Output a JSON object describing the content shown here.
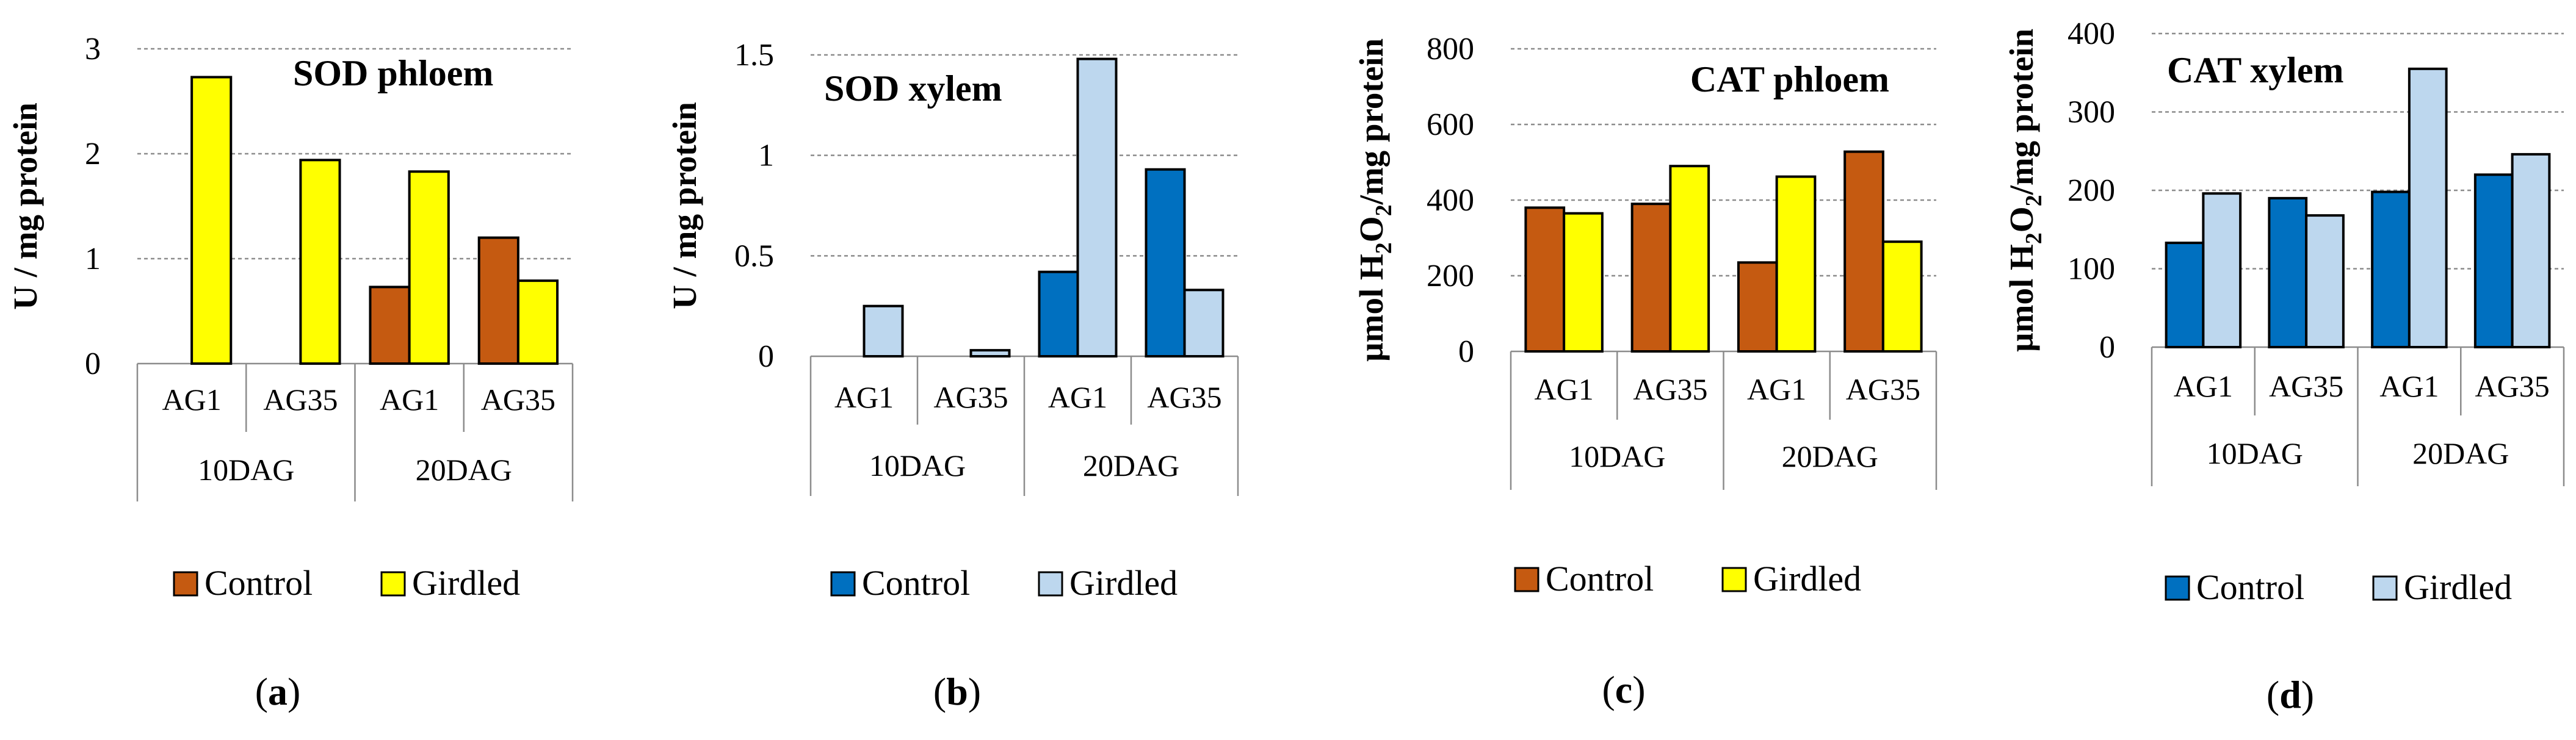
{
  "figure": {
    "panel_labels": [
      "(a)",
      "(b)",
      "(c)",
      "(d)"
    ]
  },
  "colors": {
    "control_brown": "#C55A11",
    "girdled_yellow": "#FFFF00",
    "control_blue": "#0070C0",
    "girdled_lightblue": "#BDD7EE",
    "grid": "#8C8C8C"
  },
  "chart_data": [
    {
      "type": "bar",
      "title": "SOD phloem",
      "ylabel": "U / mg protein",
      "ylim": [
        0,
        3
      ],
      "yticks": [
        "0",
        "1",
        "2",
        "3"
      ],
      "grid": true,
      "categories": [
        "AG1",
        "AG35",
        "AG1",
        "AG35"
      ],
      "groups": [
        "10DAG",
        "20DAG"
      ],
      "legend_position": "bottom",
      "series": [
        {
          "name": "Control",
          "color": "#C55A11",
          "values": [
            0,
            0,
            0.73,
            1.2
          ]
        },
        {
          "name": "Girdled",
          "color": "#FFFF00",
          "values": [
            2.73,
            1.94,
            1.83,
            0.79
          ]
        }
      ]
    },
    {
      "type": "bar",
      "title": "SOD xylem",
      "ylabel": "U / mg protein",
      "ylim": [
        0,
        1.5
      ],
      "yticks": [
        "0",
        "0.5",
        "1",
        "1.5"
      ],
      "grid": true,
      "categories": [
        "AG1",
        "AG35",
        "AG1",
        "AG35"
      ],
      "groups": [
        "10DAG",
        "20DAG"
      ],
      "legend_position": "bottom",
      "series": [
        {
          "name": "Control",
          "color": "#0070C0",
          "values": [
            0,
            0,
            0.42,
            0.93
          ]
        },
        {
          "name": "Girdled",
          "color": "#BDD7EE",
          "values": [
            0.25,
            0.03,
            1.48,
            0.33
          ]
        }
      ]
    },
    {
      "type": "bar",
      "title": "CAT phloem",
      "ylabel": "µmol H2O2/mg protein",
      "ylabel_parts": [
        "µmol H",
        "2",
        "O",
        "2",
        "/mg protein"
      ],
      "ylim": [
        0,
        800
      ],
      "yticks": [
        "0",
        "200",
        "400",
        "600",
        "800"
      ],
      "grid": true,
      "categories": [
        "AG1",
        "AG35",
        "AG1",
        "AG35"
      ],
      "groups": [
        "10DAG",
        "20DAG"
      ],
      "legend_position": "bottom",
      "series": [
        {
          "name": "Control",
          "color": "#C55A11",
          "values": [
            380,
            390,
            235,
            528
          ]
        },
        {
          "name": "Girdled",
          "color": "#FFFF00",
          "values": [
            365,
            490,
            462,
            290
          ]
        }
      ]
    },
    {
      "type": "bar",
      "title": "CAT xylem",
      "ylabel": "µmol H2O2/mg protein",
      "ylabel_parts": [
        "µmol H",
        "2",
        "O",
        "2",
        "/mg protein"
      ],
      "ylim": [
        0,
        400
      ],
      "yticks": [
        "0",
        "100",
        "200",
        "300",
        "400"
      ],
      "grid": true,
      "categories": [
        "AG1",
        "AG35",
        "AG1",
        "AG35"
      ],
      "groups": [
        "10DAG",
        "20DAG"
      ],
      "legend_position": "bottom",
      "series": [
        {
          "name": "Control",
          "color": "#0070C0",
          "values": [
            133,
            190,
            198,
            220
          ]
        },
        {
          "name": "Girdled",
          "color": "#BDD7EE",
          "values": [
            196,
            168,
            355,
            246
          ]
        }
      ]
    }
  ]
}
